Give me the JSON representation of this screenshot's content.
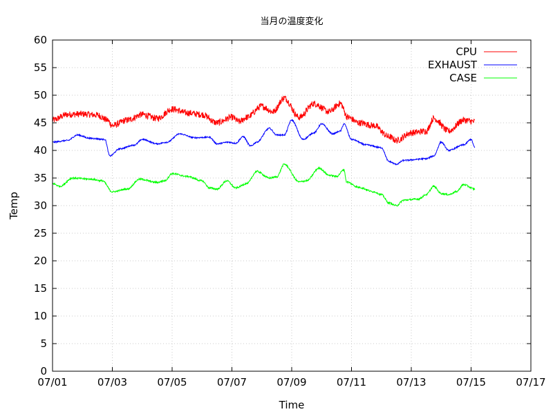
{
  "chart_data": {
    "type": "line",
    "title": "当月の温度変化",
    "xlabel": "Time",
    "ylabel": "Temp",
    "ylim": [
      0,
      60
    ],
    "yticks": [
      0,
      5,
      10,
      15,
      20,
      25,
      30,
      35,
      40,
      45,
      50,
      55,
      60
    ],
    "xlim": [
      "07/01",
      "07/17"
    ],
    "xticks": [
      "07/01",
      "07/03",
      "07/05",
      "07/07",
      "07/09",
      "07/11",
      "07/13",
      "07/15",
      "07/17"
    ],
    "grid": true,
    "legend": "top-right",
    "series": [
      {
        "name": "CPU",
        "color": "#ff0000",
        "noise": 1.2,
        "points": [
          [
            "07/01 00:00",
            45.5
          ],
          [
            "07/01 12:00",
            46.5
          ],
          [
            "07/02 00:00",
            46.6
          ],
          [
            "07/02 12:00",
            46.4
          ],
          [
            "07/02 20:00",
            45.5
          ],
          [
            "07/03 00:00",
            44.5
          ],
          [
            "07/03 12:00",
            45.5
          ],
          [
            "07/04 00:00",
            46.5
          ],
          [
            "07/04 12:00",
            45.8
          ],
          [
            "07/05 00:00",
            47.5
          ],
          [
            "07/05 12:00",
            46.8
          ],
          [
            "07/06 00:00",
            46.5
          ],
          [
            "07/06 12:00",
            45.0
          ],
          [
            "07/07 00:00",
            46.0
          ],
          [
            "07/07 06:00",
            45.2
          ],
          [
            "07/07 12:00",
            46.0
          ],
          [
            "07/08 00:00",
            48.0
          ],
          [
            "07/08 09:00",
            47.0
          ],
          [
            "07/08 18:00",
            49.5
          ],
          [
            "07/09 06:00",
            46.0
          ],
          [
            "07/09 18:00",
            48.5
          ],
          [
            "07/10 06:00",
            47.0
          ],
          [
            "07/10 15:00",
            48.5
          ],
          [
            "07/10 21:00",
            46.0
          ],
          [
            "07/11 06:00",
            45.0
          ],
          [
            "07/11 18:00",
            44.5
          ],
          [
            "07/12 06:00",
            42.5
          ],
          [
            "07/12 12:00",
            41.8
          ],
          [
            "07/13 00:00",
            43.2
          ],
          [
            "07/13 12:00",
            43.5
          ],
          [
            "07/13 18:00",
            45.8
          ],
          [
            "07/14 06:00",
            43.5
          ],
          [
            "07/14 18:00",
            45.5
          ],
          [
            "07/15 03:00",
            45.2
          ]
        ]
      },
      {
        "name": "EXHAUST",
        "color": "#0000ff",
        "noise": 0.25,
        "points": [
          [
            "07/01 00:00",
            41.5
          ],
          [
            "07/01 12:00",
            41.8
          ],
          [
            "07/01 20:00",
            42.8
          ],
          [
            "07/02 06:00",
            42.2
          ],
          [
            "07/02 18:00",
            42.0
          ],
          [
            "07/02 22:00",
            39.0
          ],
          [
            "07/03 06:00",
            40.3
          ],
          [
            "07/03 18:00",
            41.0
          ],
          [
            "07/04 00:00",
            42.0
          ],
          [
            "07/04 12:00",
            41.2
          ],
          [
            "07/04 20:00",
            41.5
          ],
          [
            "07/05 06:00",
            43.0
          ],
          [
            "07/05 18:00",
            42.3
          ],
          [
            "07/06 06:00",
            42.4
          ],
          [
            "07/06 12:00",
            41.2
          ],
          [
            "07/06 21:00",
            41.5
          ],
          [
            "07/07 03:00",
            41.3
          ],
          [
            "07/07 09:00",
            42.5
          ],
          [
            "07/07 15:00",
            40.8
          ],
          [
            "07/07 20:00",
            41.5
          ],
          [
            "07/08 06:00",
            44.0
          ],
          [
            "07/08 12:00",
            42.8
          ],
          [
            "07/08 18:00",
            42.8
          ],
          [
            "07/09 00:00",
            45.5
          ],
          [
            "07/09 09:00",
            42.0
          ],
          [
            "07/09 18:00",
            43.2
          ],
          [
            "07/10 00:00",
            44.8
          ],
          [
            "07/10 09:00",
            43.0
          ],
          [
            "07/10 15:00",
            43.5
          ],
          [
            "07/10 18:00",
            44.8
          ],
          [
            "07/11 00:00",
            42.0
          ],
          [
            "07/11 12:00",
            41.0
          ],
          [
            "07/12 00:00",
            40.5
          ],
          [
            "07/12 06:00",
            38.0
          ],
          [
            "07/12 12:00",
            37.5
          ],
          [
            "07/12 18:00",
            38.2
          ],
          [
            "07/13 12:00",
            38.5
          ],
          [
            "07/13 18:00",
            39.0
          ],
          [
            "07/14 00:00",
            41.5
          ],
          [
            "07/14 06:00",
            40.0
          ],
          [
            "07/14 18:00",
            41.0
          ],
          [
            "07/15 00:00",
            42.0
          ],
          [
            "07/15 03:00",
            40.5
          ]
        ]
      },
      {
        "name": "CASE",
        "color": "#00ff00",
        "noise": 0.3,
        "points": [
          [
            "07/01 00:00",
            34.0
          ],
          [
            "07/01 06:00",
            33.5
          ],
          [
            "07/01 16:00",
            35.0
          ],
          [
            "07/02 06:00",
            34.8
          ],
          [
            "07/02 16:00",
            34.5
          ],
          [
            "07/03 00:00",
            32.5
          ],
          [
            "07/03 12:00",
            33.0
          ],
          [
            "07/03 22:00",
            34.8
          ],
          [
            "07/04 12:00",
            34.2
          ],
          [
            "07/04 18:00",
            34.5
          ],
          [
            "07/05 00:00",
            35.8
          ],
          [
            "07/05 12:00",
            35.3
          ],
          [
            "07/06 00:00",
            34.5
          ],
          [
            "07/06 06:00",
            33.2
          ],
          [
            "07/06 12:00",
            33.0
          ],
          [
            "07/06 20:00",
            34.5
          ],
          [
            "07/07 03:00",
            33.2
          ],
          [
            "07/07 12:00",
            34.0
          ],
          [
            "07/07 20:00",
            36.2
          ],
          [
            "07/08 06:00",
            35.0
          ],
          [
            "07/08 12:00",
            35.2
          ],
          [
            "07/08 18:00",
            37.5
          ],
          [
            "07/09 06:00",
            34.3
          ],
          [
            "07/09 12:00",
            34.5
          ],
          [
            "07/09 22:00",
            36.8
          ],
          [
            "07/10 06:00",
            35.5
          ],
          [
            "07/10 12:00",
            35.3
          ],
          [
            "07/10 18:00",
            36.5
          ],
          [
            "07/10 20:00",
            34.3
          ],
          [
            "07/11 06:00",
            33.3
          ],
          [
            "07/11 18:00",
            32.5
          ],
          [
            "07/12 00:00",
            32.0
          ],
          [
            "07/12 06:00",
            30.5
          ],
          [
            "07/12 12:00",
            30.0
          ],
          [
            "07/12 18:00",
            31.0
          ],
          [
            "07/13 06:00",
            31.2
          ],
          [
            "07/13 12:00",
            32.0
          ],
          [
            "07/13 18:00",
            33.5
          ],
          [
            "07/14 00:00",
            32.2
          ],
          [
            "07/14 06:00",
            32.0
          ],
          [
            "07/14 12:00",
            32.5
          ],
          [
            "07/14 18:00",
            33.8
          ],
          [
            "07/15 03:00",
            33.0
          ]
        ]
      }
    ]
  }
}
